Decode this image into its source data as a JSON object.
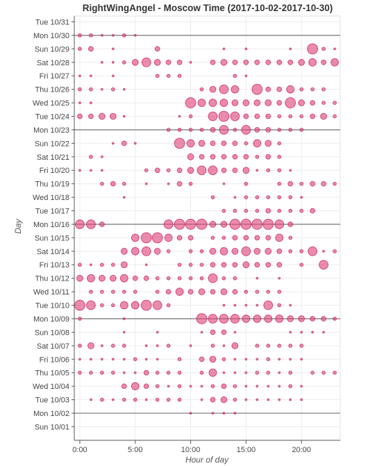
{
  "chart_data": {
    "type": "scatter",
    "title": "RightWingAngel - Moscow Time (2017-10-02-2017-10-30)",
    "xlabel": "Hour of day",
    "ylabel": "Day",
    "xlim": [
      -0.5,
      23.5
    ],
    "x_ticks": [
      {
        "value": 0,
        "label": "0:00"
      },
      {
        "value": 5,
        "label": "5:00"
      },
      {
        "value": 10,
        "label": "10:00"
      },
      {
        "value": 15,
        "label": "15:00"
      },
      {
        "value": 20,
        "label": "20:00"
      }
    ],
    "days": [
      "Tue 10/31",
      "Mon 10/30",
      "Sun 10/29",
      "Sat 10/28",
      "Fri 10/27",
      "Thu 10/26",
      "Wed 10/25",
      "Tue 10/24",
      "Mon 10/23",
      "Sun 10/22",
      "Sat 10/21",
      "Fri 10/20",
      "Thu 10/19",
      "Wed 10/18",
      "Tue 10/17",
      "Mon 10/16",
      "Sun 10/15",
      "Sat 10/14",
      "Fri 10/13",
      "Thu 10/12",
      "Wed 10/11",
      "Tue 10/10",
      "Mon 10/09",
      "Sun 10/08",
      "Sat 10/07",
      "Fri 10/06",
      "Thu 10/05",
      "Wed 10/04",
      "Tue 10/03",
      "Mon 10/02",
      "Sun 10/01"
    ],
    "week_separators": [
      "Mon 10/30",
      "Mon 10/23",
      "Mon 10/16",
      "Mon 10/09",
      "Mon 10/02"
    ],
    "grid": true,
    "marker_color": "#e0457b",
    "separator_color": "#7f7f7f",
    "size_scale": "relative activity (1 = smallest dot, 10 = largest dot)",
    "points": [
      {
        "day": "Mon 10/30",
        "hours": [
          0,
          1,
          2,
          3,
          4,
          5
        ],
        "sizes": [
          2,
          2,
          1,
          1,
          2,
          1
        ]
      },
      {
        "day": "Sun 10/29",
        "hours": [
          0,
          1,
          3,
          7,
          13,
          15,
          19,
          21,
          22,
          23
        ],
        "sizes": [
          2,
          3,
          1,
          3,
          1,
          1,
          1,
          7,
          2,
          1
        ]
      },
      {
        "day": "Sat 10/28",
        "hours": [
          2,
          3,
          4,
          5,
          6,
          7,
          8,
          9,
          10,
          12,
          13,
          14,
          15,
          16,
          17,
          18,
          19,
          20,
          21,
          22,
          23
        ],
        "sizes": [
          1,
          1,
          2,
          4,
          6,
          4,
          3,
          3,
          1,
          3,
          4,
          3,
          3,
          3,
          3,
          3,
          3,
          4,
          5,
          3,
          5
        ]
      },
      {
        "day": "Fri 10/27",
        "hours": [
          0,
          1,
          3,
          7,
          8,
          9,
          14,
          15
        ],
        "sizes": [
          1,
          1,
          1,
          2,
          2,
          2,
          2,
          1
        ]
      },
      {
        "day": "Thu 10/26",
        "hours": [
          0,
          1,
          2,
          3,
          4,
          11,
          12,
          13,
          14,
          16,
          17,
          18,
          19,
          20,
          21,
          22
        ],
        "sizes": [
          2,
          2,
          1,
          2,
          1,
          2,
          4,
          6,
          5,
          7,
          3,
          3,
          5,
          2,
          2,
          2
        ]
      },
      {
        "day": "Wed 10/25",
        "hours": [
          0,
          1,
          10,
          11,
          12,
          13,
          14,
          15,
          16,
          17,
          18,
          19,
          20,
          21,
          22,
          23
        ],
        "sizes": [
          1,
          1,
          7,
          5,
          5,
          5,
          4,
          4,
          4,
          4,
          3,
          7,
          4,
          3,
          2,
          2
        ]
      },
      {
        "day": "Tue 10/24",
        "hours": [
          0,
          1,
          2,
          3,
          4,
          9,
          10,
          12,
          13,
          14,
          15,
          16,
          17,
          18,
          19,
          20,
          21,
          22,
          23
        ],
        "sizes": [
          3,
          3,
          4,
          4,
          1,
          1,
          2,
          6,
          7,
          6,
          3,
          3,
          3,
          2,
          2,
          2,
          3,
          4,
          2
        ]
      },
      {
        "day": "Mon 10/23",
        "hours": [
          8,
          9,
          10,
          11,
          12,
          13,
          14,
          15,
          16,
          17,
          18,
          19,
          20
        ],
        "sizes": [
          2,
          2,
          2,
          2,
          3,
          6,
          2,
          6,
          3,
          3,
          2,
          2,
          2
        ]
      },
      {
        "day": "Sun 10/22",
        "hours": [
          3,
          4,
          5,
          9,
          10,
          11,
          12,
          13,
          14,
          15,
          16,
          17,
          18
        ],
        "sizes": [
          1,
          3,
          1,
          7,
          5,
          4,
          3,
          3,
          3,
          2,
          5,
          4,
          2
        ]
      },
      {
        "day": "Sat 10/21",
        "hours": [
          1,
          2,
          10,
          11,
          12,
          13,
          14,
          15,
          16,
          17,
          18
        ],
        "sizes": [
          2,
          1,
          4,
          3,
          3,
          3,
          3,
          3,
          2,
          3,
          2
        ]
      },
      {
        "day": "Fri 10/20",
        "hours": [
          0,
          1,
          2,
          6,
          7,
          8,
          9,
          10,
          11,
          12,
          13,
          14,
          15,
          16,
          17,
          18,
          19
        ],
        "sizes": [
          1,
          1,
          1,
          2,
          3,
          2,
          3,
          4,
          6,
          6,
          3,
          3,
          4,
          1,
          2,
          2,
          1
        ]
      },
      {
        "day": "Thu 10/19",
        "hours": [
          2,
          3,
          4,
          6,
          8,
          9,
          10,
          13,
          15,
          18,
          19,
          20,
          21,
          22,
          23
        ],
        "sizes": [
          2,
          3,
          2,
          1,
          1,
          3,
          2,
          1,
          2,
          2,
          3,
          2,
          3,
          3,
          2
        ]
      },
      {
        "day": "Wed 10/18",
        "hours": [
          4,
          12,
          14,
          15,
          16,
          17,
          18,
          19,
          20
        ],
        "sizes": [
          1,
          2,
          1,
          2,
          2,
          2,
          2,
          2,
          1
        ]
      },
      {
        "day": "Tue 10/17",
        "hours": [
          13,
          14,
          15,
          16,
          17,
          18,
          19,
          20,
          21
        ],
        "sizes": [
          2,
          2,
          2,
          2,
          3,
          2,
          2,
          2,
          3
        ]
      },
      {
        "day": "Mon 10/16",
        "hours": [
          0,
          1,
          2,
          8,
          9,
          10,
          11,
          12,
          13,
          14,
          15,
          16,
          17,
          18,
          19
        ],
        "sizes": [
          6,
          6,
          3,
          6,
          7,
          7,
          7,
          4,
          4,
          7,
          7,
          7,
          7,
          6,
          3
        ]
      },
      {
        "day": "Sun 10/15",
        "hours": [
          5,
          6,
          7,
          8,
          9,
          10,
          12,
          13,
          14,
          15,
          16,
          17,
          18,
          19
        ],
        "sizes": [
          5,
          7,
          7,
          5,
          3,
          3,
          2,
          2,
          3,
          3,
          3,
          3,
          5,
          2
        ]
      },
      {
        "day": "Sat 10/14",
        "hours": [
          4,
          5,
          6,
          7,
          8,
          10,
          11,
          12,
          13,
          14,
          15,
          16,
          17,
          18,
          19,
          20,
          21,
          22,
          23
        ],
        "sizes": [
          4,
          5,
          6,
          4,
          2,
          2,
          2,
          4,
          5,
          4,
          6,
          4,
          4,
          3,
          2,
          2,
          6,
          1,
          2
        ]
      },
      {
        "day": "Fri 10/13",
        "hours": [
          0,
          1,
          2,
          3,
          4,
          6,
          9,
          10,
          11,
          12,
          13,
          14,
          15,
          16,
          17,
          18,
          20,
          22
        ],
        "sizes": [
          2,
          1,
          2,
          2,
          4,
          1,
          2,
          2,
          2,
          3,
          3,
          3,
          4,
          3,
          3,
          3,
          2,
          6
        ]
      },
      {
        "day": "Thu 10/12",
        "hours": [
          0,
          1,
          2,
          3,
          4,
          5,
          6,
          7,
          8,
          9,
          10,
          11,
          12,
          13,
          14,
          16,
          18
        ],
        "sizes": [
          4,
          5,
          4,
          4,
          5,
          3,
          3,
          2,
          2,
          2,
          2,
          2,
          6,
          2,
          2,
          1,
          1
        ]
      },
      {
        "day": "Wed 10/11",
        "hours": [
          1,
          2,
          3,
          4,
          5,
          7,
          8,
          9,
          10,
          11,
          12,
          13,
          14,
          15,
          16,
          17,
          18
        ],
        "sizes": [
          2,
          2,
          2,
          2,
          2,
          2,
          3,
          5,
          3,
          4,
          3,
          4,
          3,
          2,
          2,
          2,
          2
        ]
      },
      {
        "day": "Tue 10/10",
        "hours": [
          0,
          1,
          2,
          3,
          4,
          5,
          6,
          7,
          8,
          13,
          14,
          15,
          16,
          17,
          18,
          19
        ],
        "sizes": [
          7,
          6,
          2,
          2,
          5,
          5,
          7,
          6,
          2,
          1,
          1,
          1,
          1,
          6,
          2,
          1
        ]
      },
      {
        "day": "Mon 10/09",
        "hours": [
          0,
          4,
          11,
          12,
          13,
          14,
          15,
          16,
          17,
          18,
          19,
          20,
          21,
          22,
          23
        ],
        "sizes": [
          2,
          1,
          7,
          6,
          6,
          6,
          5,
          5,
          5,
          5,
          4,
          4,
          3,
          3,
          2
        ]
      },
      {
        "day": "Sun 10/08",
        "hours": [
          4,
          7,
          11,
          12,
          13,
          14,
          19,
          20,
          21,
          22
        ],
        "sizes": [
          1,
          1,
          1,
          3,
          3,
          1,
          1,
          1,
          1,
          1
        ]
      },
      {
        "day": "Sat 10/07",
        "hours": [
          0,
          1,
          2,
          3,
          4,
          6,
          7,
          8,
          10,
          12,
          13,
          14,
          16,
          17,
          18,
          19,
          20
        ],
        "sizes": [
          2,
          4,
          1,
          2,
          2,
          1,
          1,
          2,
          1,
          2,
          1,
          4,
          2,
          2,
          2,
          2,
          2
        ]
      },
      {
        "day": "Fri 10/06",
        "hours": [
          0,
          1,
          2,
          3,
          4,
          5,
          6,
          7,
          9,
          11,
          12,
          13,
          14,
          15,
          16,
          17,
          18,
          19,
          20
        ],
        "sizes": [
          1,
          1,
          1,
          1,
          1,
          2,
          1,
          1,
          2,
          3,
          4,
          2,
          1,
          1,
          1,
          2,
          1,
          1,
          1
        ]
      },
      {
        "day": "Thu 10/05",
        "hours": [
          0,
          1,
          2,
          3,
          4,
          5,
          6,
          7,
          8,
          9,
          11,
          12,
          13,
          14,
          15,
          16,
          17,
          18,
          19,
          21,
          22,
          23
        ],
        "sizes": [
          2,
          2,
          2,
          2,
          1,
          1,
          3,
          2,
          2,
          2,
          2,
          5,
          1,
          1,
          1,
          2,
          2,
          1,
          2,
          2,
          2,
          2
        ]
      },
      {
        "day": "Wed 10/04",
        "hours": [
          4,
          5,
          6,
          7,
          8,
          9,
          10,
          11,
          12,
          13,
          14,
          15,
          16,
          17,
          18,
          19,
          20
        ],
        "sizes": [
          3,
          5,
          3,
          2,
          1,
          2,
          1,
          1,
          2,
          3,
          2,
          1,
          1,
          1,
          1,
          2,
          1
        ]
      },
      {
        "day": "Tue 10/03",
        "hours": [
          1,
          2,
          3,
          4,
          5,
          6,
          7,
          8,
          9,
          11,
          12,
          13,
          14,
          15,
          16,
          17,
          18,
          19,
          20
        ],
        "sizes": [
          1,
          2,
          1,
          2,
          2,
          1,
          2,
          2,
          2,
          1,
          3,
          4,
          2,
          1,
          1,
          1,
          1,
          1,
          1
        ]
      },
      {
        "day": "Mon 10/02",
        "hours": [
          10,
          12,
          13,
          14
        ],
        "sizes": [
          1,
          1,
          1,
          1
        ]
      }
    ]
  }
}
